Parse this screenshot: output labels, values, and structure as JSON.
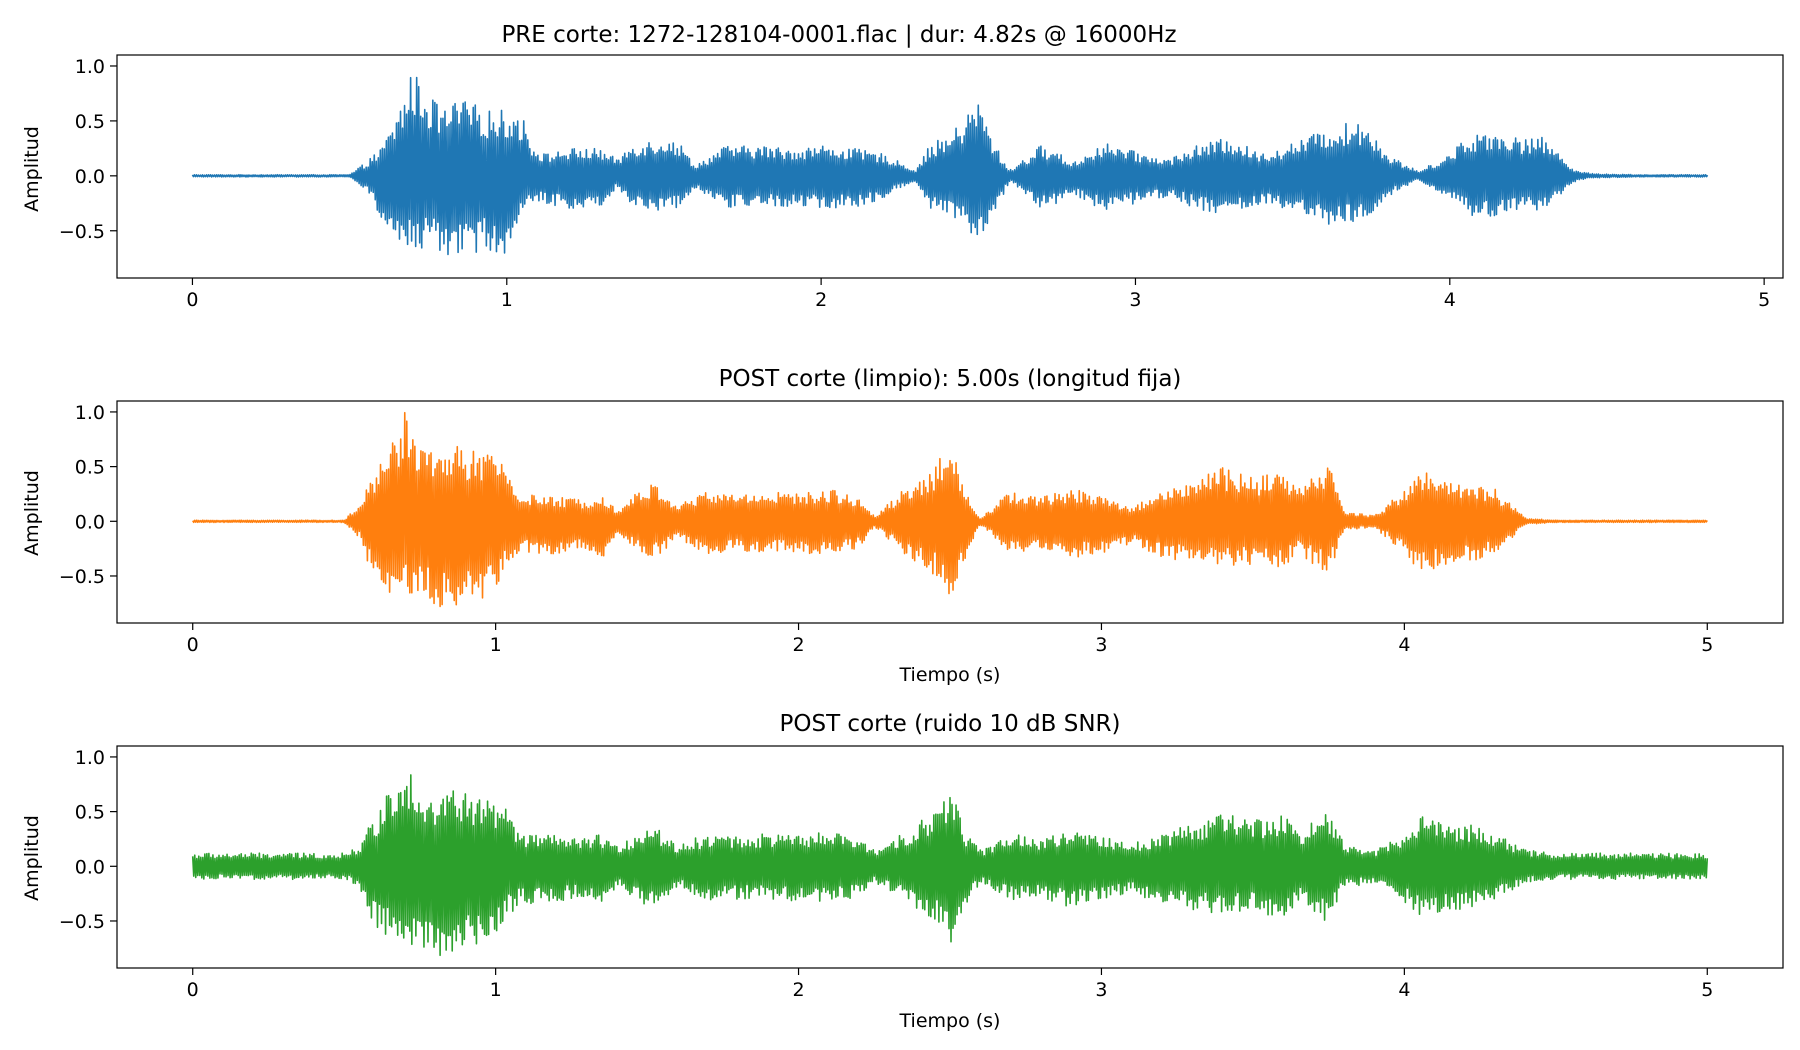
{
  "chart_data": [
    {
      "type": "line",
      "title": "PRE corte: 1272-128104-0001.flac | dur: 4.82s @ 16000Hz",
      "xlabel": "",
      "ylabel": "Amplitud",
      "xlim": [
        -0.24,
        5.06
      ],
      "ylim": [
        -0.93,
        1.1
      ],
      "xticks": [
        0,
        1,
        2,
        3,
        4,
        5
      ],
      "xtick_labels": [
        "0",
        "1",
        "2",
        "3",
        "4",
        "5"
      ],
      "yticks": [
        1.0,
        0.5,
        0.0,
        -0.5
      ],
      "ytick_labels": [
        "1.0",
        "0.5",
        "0.0",
        "−0.5"
      ],
      "grid": false,
      "color": "#1f77b4",
      "duration_s": 4.82,
      "noise_floor": 0.01,
      "envelope": {
        "t": [
          0.0,
          0.5,
          0.55,
          0.6,
          0.65,
          0.7,
          0.75,
          0.8,
          0.85,
          0.9,
          0.95,
          1.0,
          1.05,
          1.08,
          1.12,
          1.2,
          1.3,
          1.35,
          1.4,
          1.5,
          1.55,
          1.6,
          1.7,
          1.75,
          1.8,
          1.9,
          2.0,
          2.1,
          2.2,
          2.3,
          2.35,
          2.4,
          2.45,
          2.5,
          2.55,
          2.6,
          2.7,
          2.75,
          2.8,
          2.9,
          3.0,
          3.1,
          3.2,
          3.3,
          3.4,
          3.5,
          3.6,
          3.7,
          3.75,
          3.8,
          3.9,
          4.0,
          4.05,
          4.1,
          4.15,
          4.2,
          4.3,
          4.4,
          4.45,
          4.6,
          4.82
        ],
        "top": [
          0.01,
          0.01,
          0.12,
          0.25,
          0.55,
          0.97,
          0.75,
          0.6,
          0.7,
          0.65,
          0.6,
          0.6,
          0.55,
          0.3,
          0.2,
          0.25,
          0.25,
          0.15,
          0.3,
          0.35,
          0.3,
          0.1,
          0.28,
          0.27,
          0.28,
          0.25,
          0.28,
          0.25,
          0.2,
          0.05,
          0.3,
          0.35,
          0.5,
          0.7,
          0.3,
          0.05,
          0.28,
          0.22,
          0.12,
          0.3,
          0.22,
          0.15,
          0.28,
          0.35,
          0.2,
          0.3,
          0.42,
          0.5,
          0.45,
          0.2,
          0.04,
          0.2,
          0.35,
          0.4,
          0.42,
          0.35,
          0.35,
          0.05,
          0.02,
          0.01,
          0.01
        ],
        "bottom": [
          0.01,
          0.01,
          0.12,
          0.4,
          0.62,
          0.7,
          0.68,
          0.72,
          0.8,
          0.7,
          0.68,
          0.72,
          0.4,
          0.25,
          0.25,
          0.3,
          0.28,
          0.1,
          0.28,
          0.33,
          0.28,
          0.1,
          0.3,
          0.28,
          0.28,
          0.28,
          0.3,
          0.3,
          0.2,
          0.05,
          0.3,
          0.35,
          0.45,
          0.65,
          0.35,
          0.05,
          0.3,
          0.25,
          0.15,
          0.35,
          0.25,
          0.2,
          0.3,
          0.38,
          0.25,
          0.35,
          0.45,
          0.45,
          0.4,
          0.2,
          0.04,
          0.2,
          0.35,
          0.4,
          0.4,
          0.35,
          0.3,
          0.05,
          0.02,
          0.01,
          0.01
        ]
      }
    },
    {
      "type": "line",
      "title": "POST corte (limpio): 5.00s (longitud fija)",
      "xlabel": "Tiempo (s)",
      "ylabel": "Amplitud",
      "xlim": [
        -0.25,
        5.25
      ],
      "ylim": [
        -0.93,
        1.1
      ],
      "xticks": [
        0,
        1,
        2,
        3,
        4,
        5
      ],
      "xtick_labels": [
        "0",
        "1",
        "2",
        "3",
        "4",
        "5"
      ],
      "yticks": [
        1.0,
        0.5,
        0.0,
        -0.5
      ],
      "ytick_labels": [
        "1.0",
        "0.5",
        "0.0",
        "−0.5"
      ],
      "grid": false,
      "color": "#ff7f0e",
      "duration_s": 5.0,
      "noise_floor": 0.01,
      "envelope": {
        "t": [
          0.0,
          0.5,
          0.55,
          0.6,
          0.65,
          0.7,
          0.75,
          0.8,
          0.85,
          0.9,
          0.95,
          1.0,
          1.03,
          1.08,
          1.2,
          1.3,
          1.35,
          1.4,
          1.5,
          1.55,
          1.6,
          1.7,
          1.8,
          1.9,
          2.0,
          2.1,
          2.2,
          2.25,
          2.35,
          2.45,
          2.5,
          2.55,
          2.6,
          2.7,
          2.8,
          2.9,
          3.0,
          3.1,
          3.2,
          3.3,
          3.4,
          3.5,
          3.6,
          3.65,
          3.75,
          3.8,
          3.9,
          4.0,
          4.05,
          4.1,
          4.15,
          4.2,
          4.3,
          4.4,
          4.5,
          4.7,
          5.0
        ],
        "top": [
          0.01,
          0.01,
          0.15,
          0.45,
          0.7,
          1.0,
          0.75,
          0.6,
          0.72,
          0.68,
          0.62,
          0.6,
          0.55,
          0.25,
          0.22,
          0.2,
          0.28,
          0.1,
          0.35,
          0.3,
          0.15,
          0.28,
          0.25,
          0.28,
          0.25,
          0.3,
          0.22,
          0.05,
          0.3,
          0.5,
          0.72,
          0.3,
          0.03,
          0.28,
          0.22,
          0.3,
          0.25,
          0.12,
          0.3,
          0.35,
          0.5,
          0.4,
          0.45,
          0.3,
          0.55,
          0.1,
          0.05,
          0.3,
          0.45,
          0.45,
          0.35,
          0.38,
          0.3,
          0.03,
          0.01,
          0.01,
          0.01
        ],
        "bottom": [
          0.01,
          0.01,
          0.15,
          0.55,
          0.65,
          0.7,
          0.72,
          0.78,
          0.85,
          0.7,
          0.72,
          0.6,
          0.45,
          0.3,
          0.3,
          0.25,
          0.35,
          0.1,
          0.35,
          0.3,
          0.15,
          0.3,
          0.28,
          0.28,
          0.3,
          0.3,
          0.25,
          0.05,
          0.3,
          0.5,
          0.72,
          0.35,
          0.03,
          0.3,
          0.25,
          0.35,
          0.3,
          0.2,
          0.33,
          0.38,
          0.42,
          0.4,
          0.45,
          0.3,
          0.5,
          0.1,
          0.05,
          0.3,
          0.45,
          0.45,
          0.4,
          0.38,
          0.3,
          0.03,
          0.01,
          0.01,
          0.01
        ]
      }
    },
    {
      "type": "line",
      "title": "POST corte (ruido 10 dB SNR)",
      "xlabel": "Tiempo (s)",
      "ylabel": "Amplitud",
      "xlim": [
        -0.25,
        5.25
      ],
      "ylim": [
        -0.93,
        1.1
      ],
      "xticks": [
        0,
        1,
        2,
        3,
        4,
        5
      ],
      "xtick_labels": [
        "0",
        "1",
        "2",
        "3",
        "4",
        "5"
      ],
      "yticks": [
        1.0,
        0.5,
        0.0,
        -0.5
      ],
      "ytick_labels": [
        "1.0",
        "0.5",
        "0.0",
        "−0.5"
      ],
      "grid": false,
      "color": "#2ca02c",
      "duration_s": 5.0,
      "noise_floor": 0.12,
      "envelope": {
        "t": [
          0.0,
          0.5,
          0.55,
          0.6,
          0.65,
          0.7,
          0.75,
          0.8,
          0.85,
          0.9,
          0.95,
          1.0,
          1.03,
          1.08,
          1.2,
          1.3,
          1.35,
          1.4,
          1.5,
          1.55,
          1.6,
          1.7,
          1.8,
          1.9,
          2.0,
          2.1,
          2.2,
          2.25,
          2.35,
          2.45,
          2.5,
          2.55,
          2.6,
          2.7,
          2.8,
          2.9,
          3.0,
          3.1,
          3.2,
          3.3,
          3.4,
          3.5,
          3.6,
          3.65,
          3.75,
          3.8,
          3.9,
          4.0,
          4.05,
          4.1,
          4.15,
          4.2,
          4.3,
          4.4,
          4.5,
          4.7,
          5.0
        ],
        "top": [
          0.12,
          0.12,
          0.2,
          0.45,
          0.7,
          1.0,
          0.75,
          0.6,
          0.72,
          0.68,
          0.62,
          0.6,
          0.55,
          0.3,
          0.28,
          0.25,
          0.3,
          0.18,
          0.38,
          0.32,
          0.2,
          0.3,
          0.28,
          0.3,
          0.28,
          0.32,
          0.25,
          0.15,
          0.32,
          0.5,
          0.77,
          0.32,
          0.15,
          0.3,
          0.25,
          0.32,
          0.28,
          0.2,
          0.32,
          0.38,
          0.5,
          0.42,
          0.48,
          0.32,
          0.55,
          0.2,
          0.15,
          0.32,
          0.45,
          0.45,
          0.38,
          0.4,
          0.32,
          0.15,
          0.12,
          0.12,
          0.12
        ],
        "bottom": [
          0.12,
          0.12,
          0.2,
          0.55,
          0.68,
          0.72,
          0.72,
          0.8,
          0.88,
          0.72,
          0.72,
          0.62,
          0.48,
          0.35,
          0.32,
          0.28,
          0.38,
          0.18,
          0.38,
          0.32,
          0.2,
          0.32,
          0.3,
          0.3,
          0.32,
          0.32,
          0.28,
          0.15,
          0.32,
          0.5,
          0.72,
          0.38,
          0.15,
          0.32,
          0.28,
          0.38,
          0.32,
          0.25,
          0.35,
          0.4,
          0.45,
          0.42,
          0.5,
          0.32,
          0.52,
          0.2,
          0.15,
          0.32,
          0.48,
          0.48,
          0.42,
          0.4,
          0.32,
          0.15,
          0.12,
          0.12,
          0.12
        ]
      }
    }
  ]
}
